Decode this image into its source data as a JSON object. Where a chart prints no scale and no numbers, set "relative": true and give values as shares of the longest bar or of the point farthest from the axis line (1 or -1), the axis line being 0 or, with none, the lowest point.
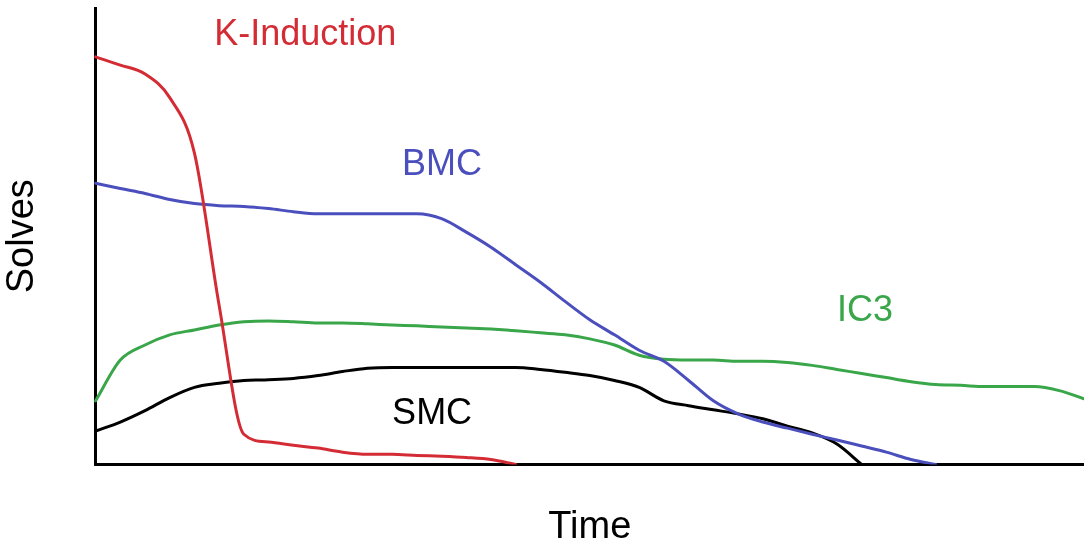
{
  "chart_data": {
    "type": "line",
    "relative": true,
    "xlabel": "Time",
    "ylabel": "Solves",
    "grid": false,
    "legend": false,
    "marker": "none",
    "line_style": "solid",
    "categories": [
      null,
      null,
      null,
      null,
      null,
      null,
      null,
      null,
      null,
      null,
      null,
      null,
      null,
      null,
      null,
      null,
      null,
      null,
      null,
      null,
      null,
      null,
      null,
      null,
      null,
      null,
      null,
      null,
      null,
      null,
      null,
      null,
      null,
      null,
      null,
      null,
      null,
      null,
      null,
      null,
      null
    ],
    "series": [
      {
        "name": "K-Induction",
        "color": "#d42c35",
        "values": [
          1.0,
          0.98,
          0.958,
          0.9,
          0.764,
          0.39,
          0.074,
          0.055,
          0.047,
          0.04,
          0.03,
          0.025,
          0.025,
          0.022,
          0.02,
          0.017,
          0.012,
          0,
          null,
          null,
          null,
          null,
          null,
          null,
          null,
          null,
          null,
          null,
          null,
          null,
          null,
          null,
          null,
          null,
          null,
          null,
          null,
          null,
          null,
          null,
          null
        ]
      },
      {
        "name": "BMC",
        "color": "#4a4fbd",
        "values": [
          0.69,
          0.677,
          0.665,
          0.65,
          0.64,
          0.635,
          0.633,
          0.628,
          0.62,
          0.615,
          0.615,
          0.615,
          0.615,
          0.615,
          0.603,
          0.57,
          0.533,
          0.49,
          0.447,
          0.4,
          0.355,
          0.318,
          0.28,
          0.253,
          0.206,
          0.156,
          0.124,
          0.104,
          0.089,
          0.074,
          0.06,
          0.045,
          0.03,
          0.012,
          0,
          null,
          null,
          null,
          null,
          null,
          null
        ]
      },
      {
        "name": "IC3",
        "color": "#3aa64a",
        "values": [
          0.156,
          0.256,
          0.293,
          0.318,
          0.33,
          0.342,
          0.35,
          0.352,
          0.35,
          0.347,
          0.347,
          0.345,
          0.342,
          0.34,
          0.337,
          0.335,
          0.332,
          0.328,
          0.323,
          0.318,
          0.308,
          0.293,
          0.268,
          0.258,
          0.256,
          0.256,
          0.253,
          0.253,
          0.25,
          0.243,
          0.233,
          0.223,
          0.213,
          0.203,
          0.196,
          0.194,
          0.191,
          0.191,
          0.191,
          0.181,
          0.161
        ]
      },
      {
        "name": "SMC",
        "color": "#000000",
        "values": [
          0.082,
          0.104,
          0.132,
          0.164,
          0.189,
          0.199,
          0.206,
          0.208,
          0.211,
          0.218,
          0.228,
          0.236,
          0.238,
          0.238,
          0.238,
          0.238,
          0.238,
          0.238,
          0.233,
          0.226,
          0.218,
          0.206,
          0.189,
          0.156,
          0.144,
          0.134,
          0.124,
          0.112,
          0.094,
          0.077,
          0.05,
          0,
          null,
          null,
          null,
          null,
          null,
          null,
          null,
          null,
          null
        ]
      }
    ]
  }
}
